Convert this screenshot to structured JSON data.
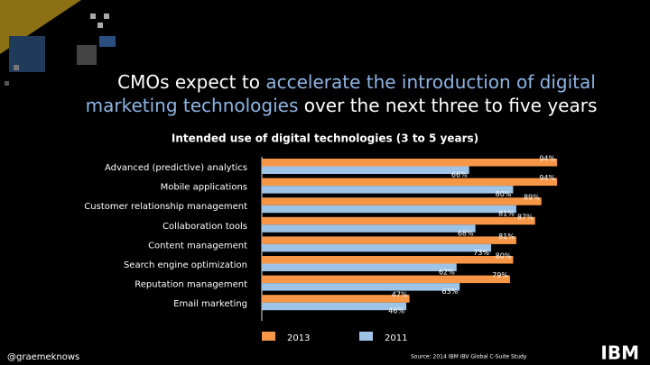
{
  "chart_data": {
    "type": "bar",
    "orientation": "horizontal",
    "title": [
      {
        "text": "CMOs expect to ",
        "color": "#ffffff"
      },
      {
        "text": "accelerate the introduction of digital",
        "color": "#8fb4e3"
      },
      {
        "text": "marketing technologies",
        "color": "#8fb4e3"
      },
      {
        "text": " over the next three to five years",
        "color": "#ffffff"
      }
    ],
    "subtitle": "Intended use of digital technologies (3 to 5 years)",
    "categories": [
      "Advanced (predictive) analytics",
      "Mobile applications",
      "Customer relationship management",
      "Collaboration tools",
      "Content management",
      "Search engine optimization",
      "Reputation management",
      "Email marketing"
    ],
    "series": [
      {
        "name": "2013",
        "color": "#f79646",
        "values": [
          94,
          94,
          89,
          87,
          81,
          80,
          79,
          47
        ],
        "value_labels": [
          "94%",
          "94%",
          "89%",
          "87%",
          "81%",
          "80%",
          "79%",
          "47%"
        ]
      },
      {
        "name": "2011",
        "color": "#9dc3e6",
        "values": [
          66,
          80,
          81,
          68,
          73,
          62,
          63,
          46
        ],
        "value_labels": [
          "66%",
          "80%",
          "81%",
          "68%",
          "73%",
          "62%",
          "63%",
          "46%"
        ]
      }
    ],
    "footer_left": "@graemeknows",
    "source": "Source:  2014 IBM IBV Global C-Suite Study",
    "logo": "IBM"
  }
}
